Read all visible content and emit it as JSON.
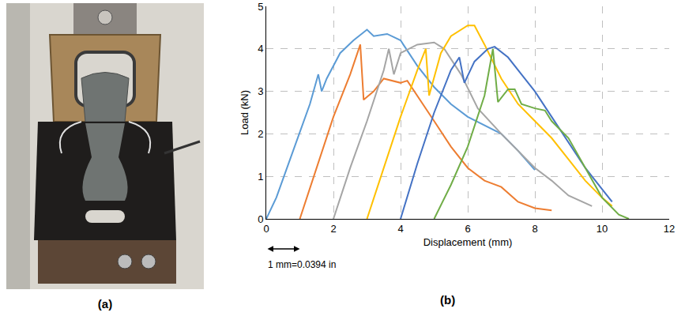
{
  "photo_panel": {
    "label": "(a)"
  },
  "chart_data": {
    "type": "line",
    "panel_label": "(b)",
    "x_label": "Displacement (mm)",
    "y_label": "Load (kN)",
    "xlim": [
      0,
      12
    ],
    "ylim": [
      0,
      5
    ],
    "xticks": [
      0,
      2,
      4,
      6,
      8,
      10,
      12
    ],
    "yticks": [
      0,
      1,
      2,
      3,
      4,
      5
    ],
    "grid": true,
    "annotations": [
      "1 mm=0.0394 in"
    ],
    "series": [
      {
        "color": "#5b9bd5",
        "x": [
          0,
          0.3,
          0.8,
          1.3,
          1.55,
          1.65,
          1.8,
          2.2,
          2.6,
          3.0,
          3.2,
          3.6,
          4.0,
          4.5,
          5.0,
          5.5,
          6.0,
          6.5,
          7.0,
          7.5,
          8.0
        ],
        "values": [
          0,
          0.5,
          1.6,
          2.7,
          3.4,
          3.0,
          3.3,
          3.9,
          4.2,
          4.45,
          4.3,
          4.35,
          4.2,
          3.6,
          3.1,
          2.7,
          2.4,
          2.2,
          2.0,
          1.6,
          1.15
        ]
      },
      {
        "color": "#ed7d31",
        "x": [
          1,
          1.5,
          2.0,
          2.5,
          2.8,
          2.9,
          3.2,
          3.5,
          4.0,
          4.2,
          4.5,
          5.0,
          5.5,
          6.0,
          6.5,
          7.0,
          7.5,
          8.0,
          8.5
        ],
        "values": [
          0,
          1.2,
          2.4,
          3.4,
          4.1,
          2.8,
          3.0,
          3.3,
          3.2,
          3.25,
          2.9,
          2.3,
          1.7,
          1.2,
          0.9,
          0.75,
          0.4,
          0.25,
          0.2
        ]
      },
      {
        "color": "#a5a5a5",
        "x": [
          2,
          2.5,
          3.0,
          3.5,
          3.65,
          3.8,
          4.0,
          4.5,
          5.0,
          5.3,
          5.8,
          6.3,
          7.0,
          7.5,
          8.0,
          8.5,
          9.0,
          9.7
        ],
        "values": [
          0,
          1.2,
          2.3,
          3.5,
          4.0,
          3.4,
          3.9,
          4.1,
          4.15,
          4.0,
          3.4,
          2.6,
          2.0,
          1.6,
          1.2,
          0.9,
          0.55,
          0.3
        ]
      },
      {
        "color": "#ffc000",
        "x": [
          3,
          3.5,
          4.0,
          4.5,
          4.75,
          4.85,
          5.2,
          5.5,
          6.0,
          6.2,
          6.5,
          7.0,
          7.5,
          8.0,
          8.5,
          9.0,
          9.5,
          10.0,
          10.3
        ],
        "values": [
          0,
          1.2,
          2.4,
          3.5,
          4.0,
          2.9,
          3.9,
          4.3,
          4.55,
          4.55,
          4.1,
          3.3,
          2.7,
          2.3,
          1.9,
          1.4,
          0.9,
          0.5,
          0.3
        ]
      },
      {
        "color": "#4472c4",
        "x": [
          4,
          4.5,
          5.0,
          5.5,
          5.75,
          5.9,
          6.2,
          6.6,
          6.8,
          7.2,
          7.6,
          8.0,
          8.5,
          9.0,
          9.5,
          10.0,
          10.3
        ],
        "values": [
          0,
          1.3,
          2.5,
          3.5,
          3.8,
          3.2,
          3.7,
          4.0,
          4.05,
          3.8,
          3.4,
          3.0,
          2.4,
          1.8,
          1.2,
          0.7,
          0.4
        ]
      },
      {
        "color": "#70ad47",
        "x": [
          5,
          5.5,
          6.0,
          6.5,
          6.75,
          6.9,
          7.2,
          7.4,
          7.6,
          8.0,
          8.3,
          8.5,
          9.0,
          9.5,
          10.0,
          10.5,
          10.8
        ],
        "values": [
          0,
          0.8,
          1.7,
          2.9,
          4.0,
          2.75,
          3.05,
          3.05,
          2.7,
          2.6,
          2.55,
          2.3,
          1.9,
          1.2,
          0.5,
          0.1,
          0.0
        ]
      }
    ]
  }
}
